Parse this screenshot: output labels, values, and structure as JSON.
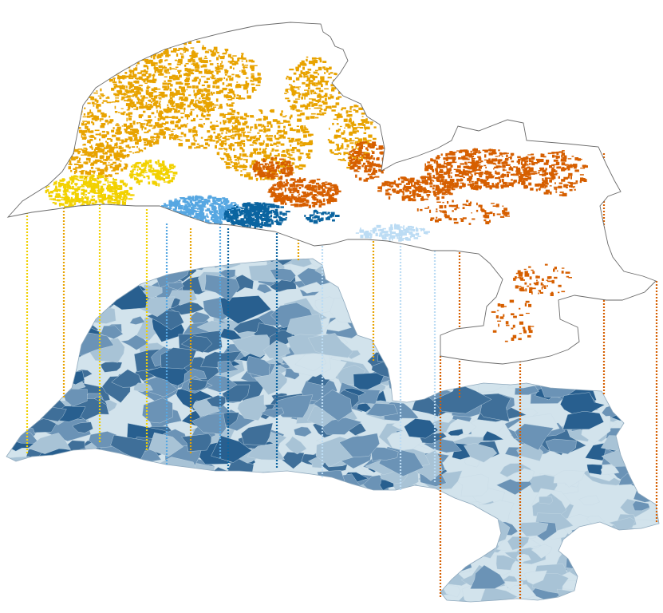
{
  "figure": {
    "colors": {
      "background": "#ffffff",
      "outline": "#6a6a6a",
      "upper_fill": "#ffffff",
      "cluster_orange": "#e8a300",
      "cluster_yellow": "#f2d100",
      "cluster_dark_orange": "#d65f00",
      "cluster_light_blue": "#56a7e2",
      "cluster_dark_blue": "#0b64a0",
      "cluster_pale_blue": "#bcdcf4",
      "base_lightest": "#d2e3ec",
      "base_light": "#a8c3d6",
      "base_medium": "#6b93b6",
      "base_dark": "#3f6f99",
      "base_darkest": "#285f8f"
    },
    "layers": [
      "cluster-map-layer",
      "base-choropleth-layer"
    ],
    "leader_line_style": "dotted"
  }
}
